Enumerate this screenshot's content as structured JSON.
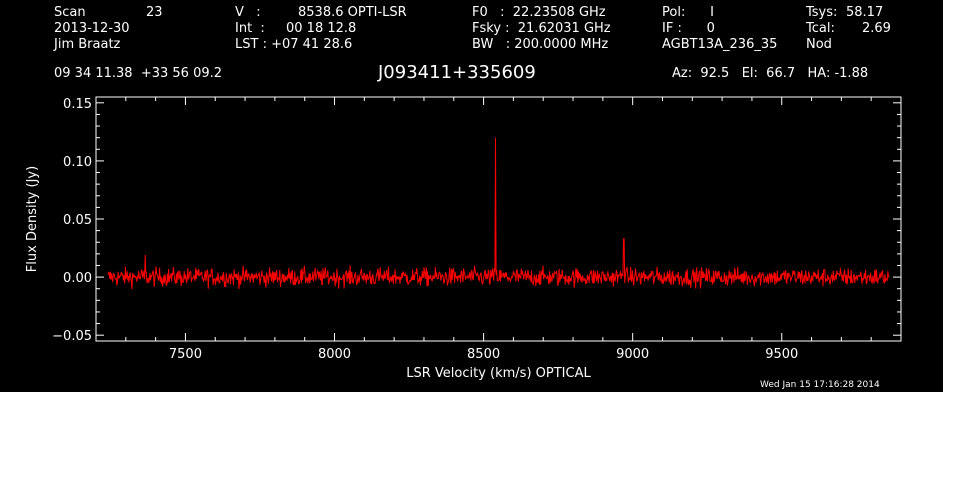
{
  "header": {
    "col1": [
      "Scan",
      "2013-12-30",
      "Jim Braatz"
    ],
    "scan_no": "23",
    "col2": [
      "V   :",
      "Int  :",
      "LST : +07 41 28.6"
    ],
    "col2_vals": [
      "8538.6 OPTI-LSR",
      "00 18 12.8",
      ""
    ],
    "col3": [
      "F0   :  22.23508 GHz",
      "Fsky :  21.62031 GHz",
      "BW   : 200.0000 MHz"
    ],
    "col4": [
      "Pol:      I",
      "IF :      0",
      "AGBT13A_236_35"
    ],
    "col5_labels": [
      "Tsys:",
      "Tcal:",
      "Nod"
    ],
    "col5_vals": [
      "58.17",
      "2.69",
      ""
    ],
    "coords": "09 34 11.38  +33 56 09.2",
    "source": "J093411+335609",
    "azel": "Az:  92.5   El:  66.7   HA: -1.88"
  },
  "timestamp": "Wed Jan 15 17:16:28 2014",
  "colors": {
    "background": "#000000",
    "axes": "#ffffff",
    "spectrum": "#ff0000"
  },
  "chart_data": {
    "type": "line",
    "title": "J093411+335609",
    "xlabel": "LSR Velocity (km/s) OPTICAL",
    "ylabel": "Flux Density (Jy)",
    "xlim": [
      7200,
      9900
    ],
    "ylim": [
      -0.055,
      0.155
    ],
    "xticks": [
      7500,
      8000,
      8500,
      9000,
      9500
    ],
    "yticks": [
      -0.05,
      0.0,
      0.05,
      0.1,
      0.15
    ],
    "xtick_labels": [
      "7500",
      "8000",
      "8500",
      "9000",
      "9500"
    ],
    "ytick_labels": [
      "−0.05",
      "0.00",
      "0.05",
      "0.10",
      "0.15"
    ],
    "grid": false,
    "series": [
      {
        "noise_rms": 0.004,
        "x_range": [
          7240,
          9860
        ],
        "peaks": [
          {
            "x": 8540,
            "y": 0.12
          },
          {
            "x": 8970,
            "y": 0.033
          },
          {
            "x": 7365,
            "y": 0.019
          }
        ]
      }
    ]
  }
}
